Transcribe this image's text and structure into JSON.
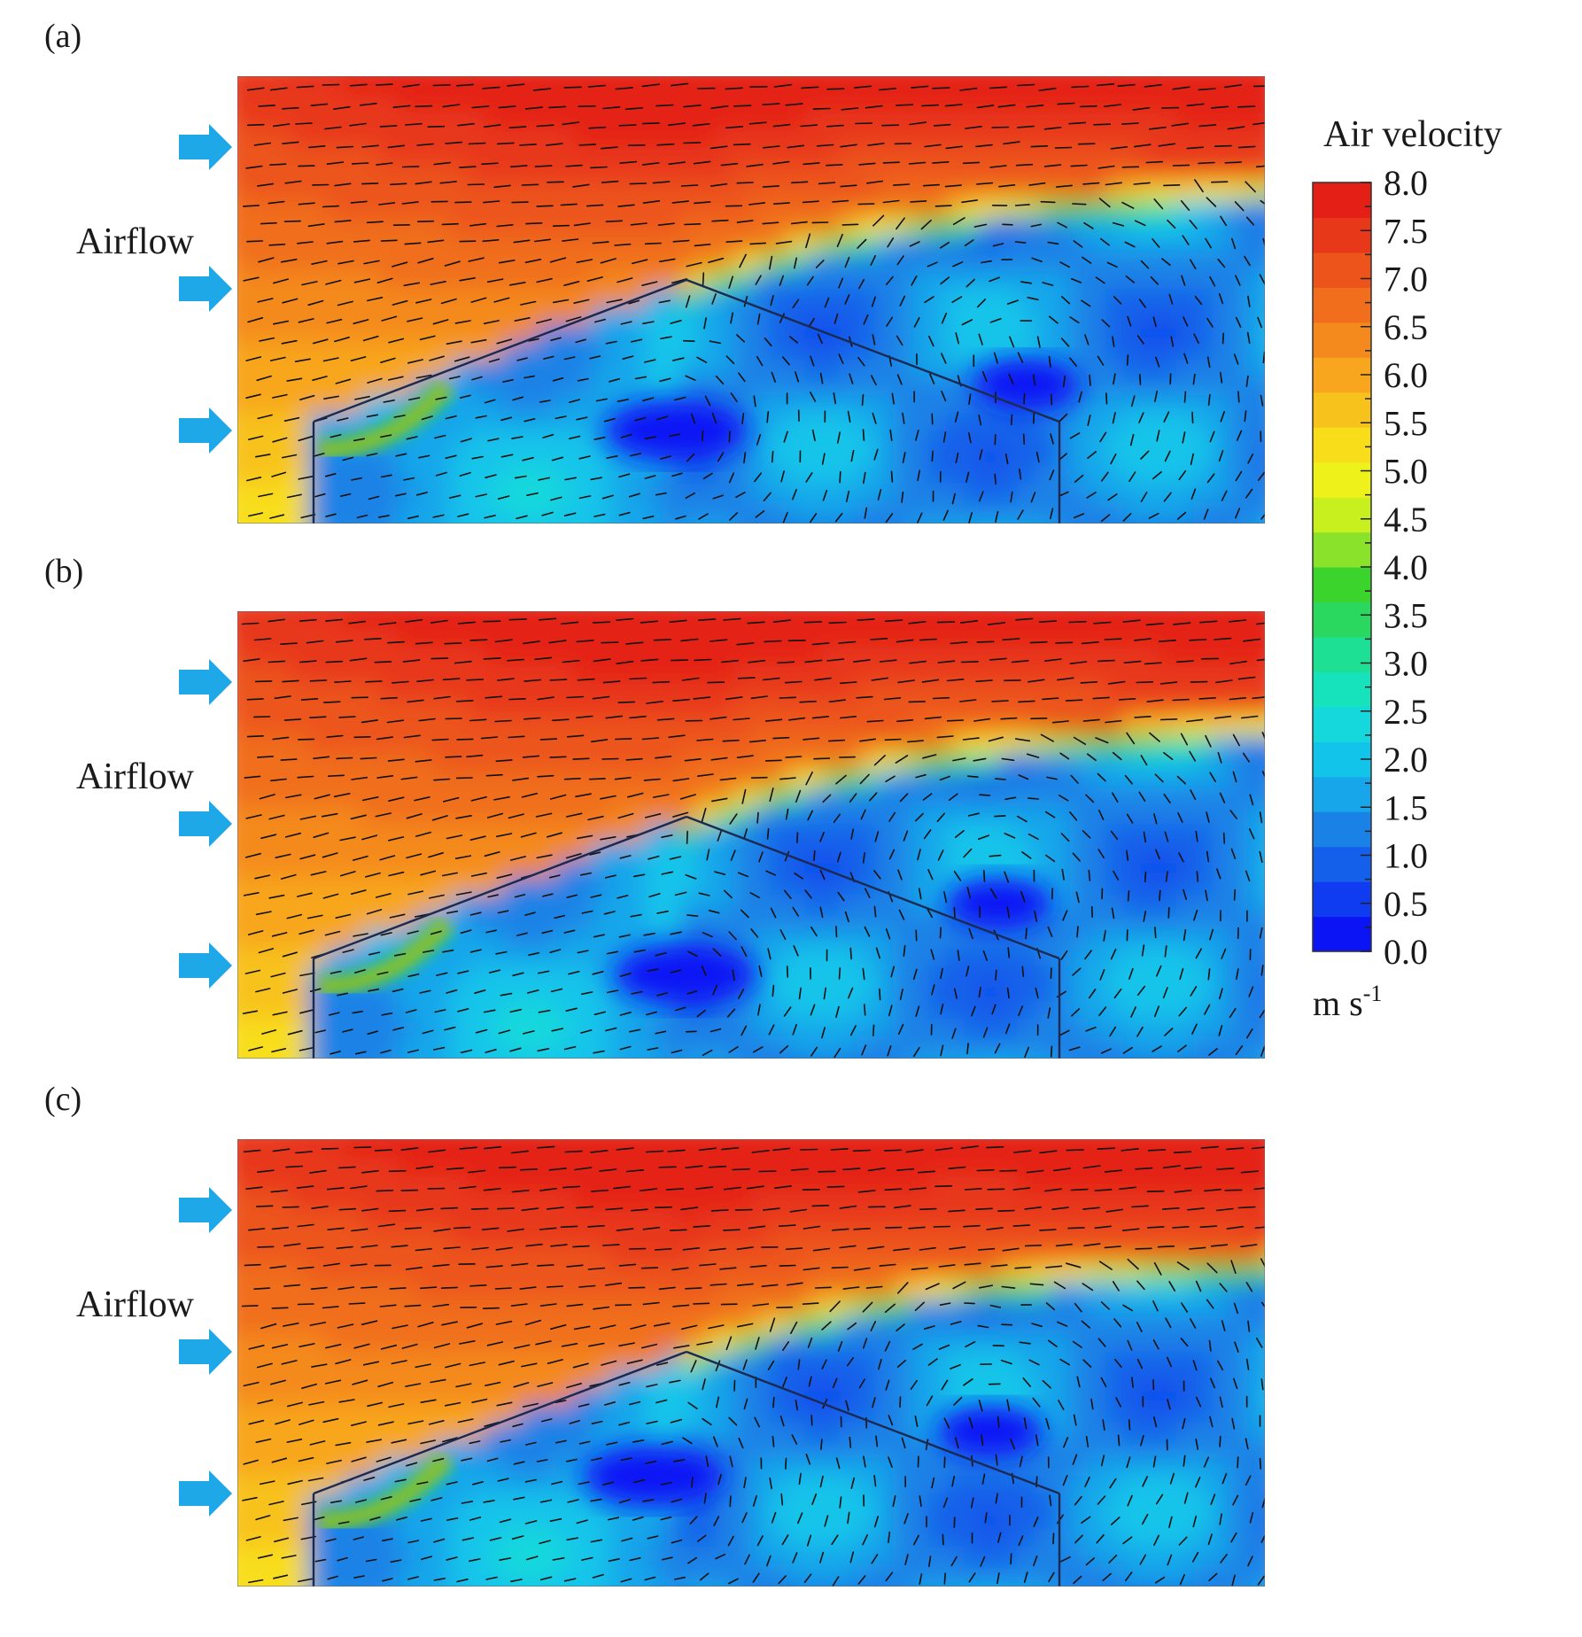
{
  "figure": {
    "colorbar": {
      "title": "Air velocity",
      "unit_base": "m s",
      "unit_exp": "-1",
      "min": 0.0,
      "max": 8.0,
      "tick_values": [
        0.0,
        0.5,
        1.0,
        1.5,
        2.0,
        2.5,
        3.0,
        3.5,
        4.0,
        4.5,
        5.0,
        5.5,
        6.0,
        6.5,
        7.0,
        7.5,
        8.0
      ],
      "tick_labels": [
        "0.0",
        "0.5",
        "1.0",
        "1.5",
        "2.0",
        "2.5",
        "3.0",
        "3.5",
        "4.0",
        "4.5",
        "5.0",
        "5.5",
        "6.0",
        "6.5",
        "7.0",
        "7.5",
        "8.0"
      ],
      "colors": [
        "#0a14f5",
        "#0f3cf0",
        "#1560ea",
        "#1a82e6",
        "#18a6ea",
        "#13c4ea",
        "#14d8dc",
        "#16e2bc",
        "#1ee094",
        "#2ad860",
        "#3ad42c",
        "#8ae22a",
        "#c8ef1e",
        "#eef21a",
        "#f8de1a",
        "#f8c21c",
        "#f8a61e",
        "#f48a1e",
        "#f06e1c",
        "#ec541c",
        "#e8381a",
        "#e42016"
      ]
    },
    "panels": [
      {
        "label": "(a)",
        "airflow_label": "Airflow"
      },
      {
        "label": "(b)",
        "airflow_label": "Airflow"
      },
      {
        "label": "(c)",
        "airflow_label": "Airflow"
      }
    ],
    "colors": {
      "arrow": "#1ea8e8",
      "structure_line": "#1b2a52",
      "vector": "#111111"
    }
  },
  "chart_data": {
    "type": "heatmap",
    "title": "",
    "quantity": "Air velocity",
    "unit": "m s-1",
    "range": [
      0.0,
      8.0
    ],
    "colorbar_ticks": [
      0.0,
      0.5,
      1.0,
      1.5,
      2.0,
      2.5,
      3.0,
      3.5,
      4.0,
      4.5,
      5.0,
      5.5,
      6.0,
      6.5,
      7.0,
      7.5,
      8.0
    ],
    "panels": [
      "(a)",
      "(b)",
      "(c)"
    ],
    "approx_field": {
      "free_stream_top": 7.5,
      "upwind_low_level": 5.5,
      "roof_wake": 0.5,
      "interior_recirculation": 0.8,
      "inlet_jet": 6.0
    }
  }
}
